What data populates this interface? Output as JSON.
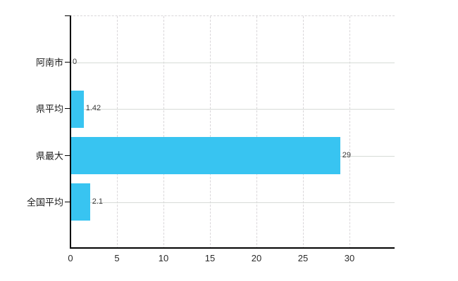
{
  "chart_data": {
    "type": "bar",
    "orientation": "horizontal",
    "title": "",
    "xlabel": "",
    "ylabel": "",
    "categories": [
      "阿南市",
      "県平均",
      "県最大",
      "全国平均"
    ],
    "values": [
      0,
      1.42,
      29,
      2.1
    ],
    "value_labels": [
      "0",
      "1.42",
      "29",
      "2.1"
    ],
    "x_ticks": [
      0,
      5,
      10,
      15,
      20,
      25,
      30
    ],
    "x_tick_labels": [
      "0",
      "5",
      "10",
      "15",
      "20",
      "25",
      "30"
    ],
    "xlim": [
      0,
      34.85
    ],
    "grid": "on",
    "legend": "none",
    "bar_color": "#38C4F1",
    "solid_grid_color": "#d7dbd7",
    "dashed_grid_color": "#d9d6d9",
    "axis_color": "#000000",
    "background_color": "#ffffff"
  }
}
